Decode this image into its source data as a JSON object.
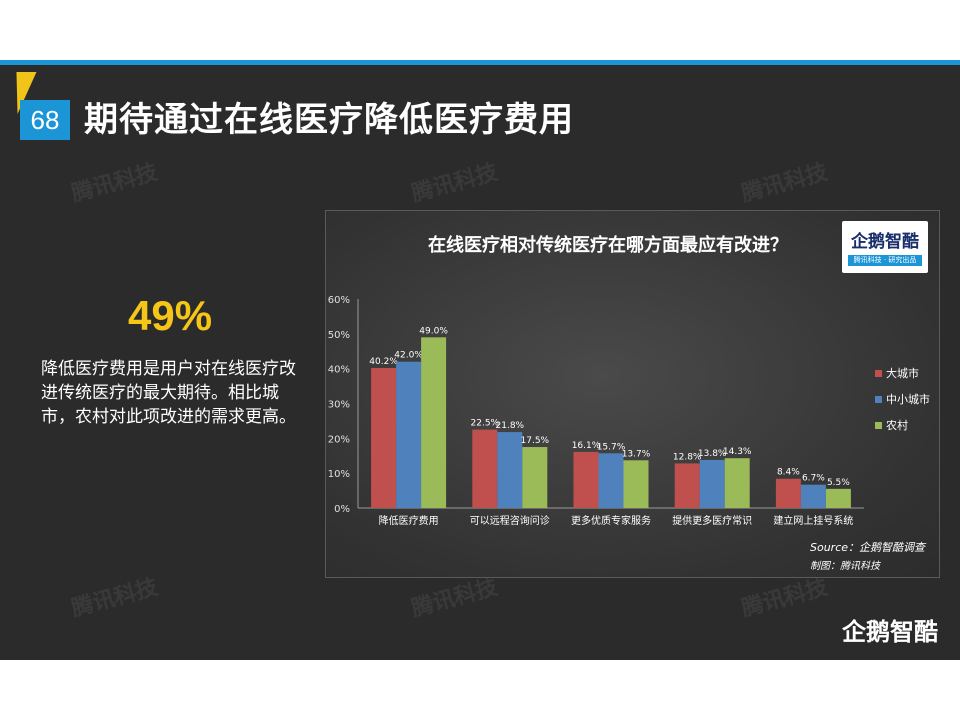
{
  "page": {
    "number": "68",
    "title": "期待通过在线医疗降低医疗费用"
  },
  "highlight": {
    "value": "49%",
    "description": "降低医疗费用是用户对在线医疗改进传统医疗的最大期待。相比城市，农村对此项改进的需求更高。"
  },
  "watermark": "腾讯科技",
  "brand": "企鹅智酷",
  "logo": {
    "name": "企鹅智酷",
    "sub": "腾讯科技 · 研究出品"
  },
  "colors": {
    "accent": "#1c95d6",
    "highlight": "#f5c518",
    "big_city": "#c0504d",
    "small_city": "#4f81bd",
    "rural": "#9bbb59"
  },
  "chart_data": {
    "type": "bar",
    "title": "在线医疗相对传统医疗在哪方面最应有改进？",
    "categories": [
      "降低医疗费用",
      "可以远程咨询问诊",
      "更多优质专家服务",
      "提供更多医疗常识",
      "建立网上挂号系统"
    ],
    "series": [
      {
        "name": "大城市",
        "values": [
          40.2,
          22.5,
          16.1,
          12.8,
          8.4
        ],
        "labels": [
          "40.2%",
          "22.5%",
          "16.1%",
          "12.8%",
          "8.4%"
        ]
      },
      {
        "name": "中小城市",
        "values": [
          42.0,
          21.8,
          15.7,
          13.8,
          6.7
        ],
        "labels": [
          "42.0%",
          "21.8%",
          "15.7%",
          "13.8%",
          "6.7%"
        ]
      },
      {
        "name": "农村",
        "values": [
          49.0,
          17.5,
          13.7,
          14.3,
          5.5
        ],
        "labels": [
          "49.0%",
          "17.5%",
          "13.7%",
          "14.3%",
          "5.5%"
        ]
      }
    ],
    "ylim": [
      0,
      60
    ],
    "yticks": [
      0,
      10,
      20,
      30,
      40,
      50,
      60
    ],
    "ytick_labels": [
      "0%",
      "10%",
      "20%",
      "30%",
      "40%",
      "50%",
      "60%"
    ],
    "legend_position": "right",
    "grid": false,
    "source": "Source：企鹅智酷调查",
    "credit": "制图：腾讯科技"
  }
}
